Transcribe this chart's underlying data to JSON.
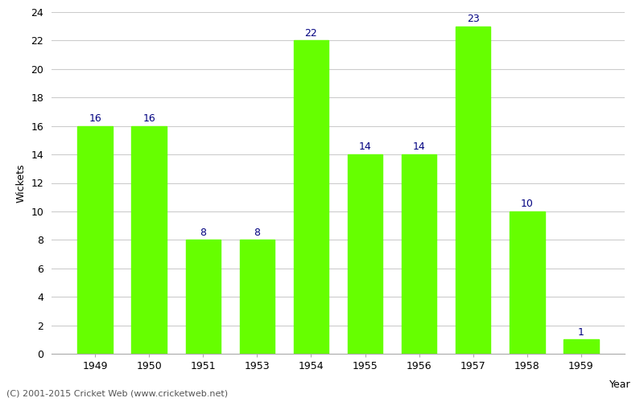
{
  "years": [
    "1949",
    "1950",
    "1951",
    "1953",
    "1954",
    "1955",
    "1956",
    "1957",
    "1958",
    "1959"
  ],
  "values": [
    16,
    16,
    8,
    8,
    22,
    14,
    14,
    23,
    10,
    1
  ],
  "bar_color": "#66ff00",
  "label_color": "#000080",
  "ylabel": "Wickets",
  "xlabel": "Year",
  "ylim": [
    0,
    24
  ],
  "yticks": [
    0,
    2,
    4,
    6,
    8,
    10,
    12,
    14,
    16,
    18,
    20,
    22,
    24
  ],
  "footer": "(C) 2001-2015 Cricket Web (www.cricketweb.net)",
  "background_color": "#ffffff",
  "grid_color": "#cccccc",
  "label_fontsize": 9,
  "axis_fontsize": 9,
  "footer_fontsize": 8
}
